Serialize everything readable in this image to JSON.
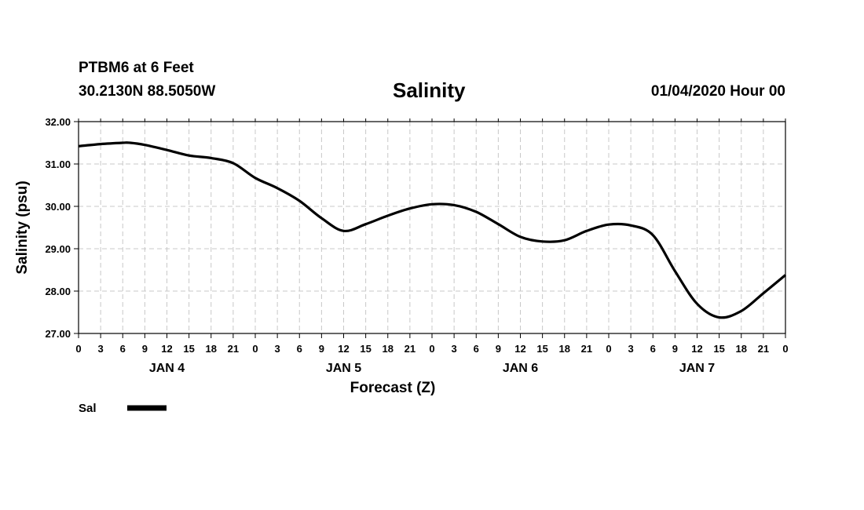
{
  "header": {
    "station": "PTBM6 at 6 Feet",
    "coords": "30.2130N 88.5050W",
    "datetime": "01/04/2020 Hour 00"
  },
  "colors": {
    "line": "#000000",
    "grid": "#c8c8c8",
    "frame": "#000000"
  },
  "chart_data": {
    "type": "line",
    "title": "Salinity",
    "xlabel": "Forecast (Z)",
    "ylabel": "Salinity (psu)",
    "xlim": [
      0,
      96
    ],
    "ylim": [
      27.0,
      32.0
    ],
    "grid": true,
    "y_ticks": [
      27.0,
      28.0,
      29.0,
      30.0,
      31.0,
      32.0
    ],
    "y_tick_labels": [
      "27.00",
      "28.00",
      "29.00",
      "30.00",
      "31.00",
      "32.00"
    ],
    "x_ticks": [
      0,
      3,
      6,
      9,
      12,
      15,
      18,
      21,
      24,
      27,
      30,
      33,
      36,
      39,
      42,
      45,
      48,
      51,
      54,
      57,
      60,
      63,
      66,
      69,
      72,
      75,
      78,
      81,
      84,
      87,
      90,
      93,
      96
    ],
    "x_tick_labels": [
      "0",
      "3",
      "6",
      "9",
      "12",
      "15",
      "18",
      "21",
      "0",
      "3",
      "6",
      "9",
      "12",
      "15",
      "18",
      "21",
      "0",
      "3",
      "6",
      "9",
      "12",
      "15",
      "18",
      "21",
      "0",
      "3",
      "6",
      "9",
      "12",
      "15",
      "18",
      "21",
      "0"
    ],
    "day_labels": [
      {
        "label": "JAN 4",
        "hour": 12
      },
      {
        "label": "JAN 5",
        "hour": 36
      },
      {
        "label": "JAN 6",
        "hour": 60
      },
      {
        "label": "JAN 7",
        "hour": 84
      }
    ],
    "legend_position": "bottom-left",
    "series": [
      {
        "name": "Sal",
        "x": [
          0,
          3,
          6,
          7,
          9,
          12,
          15,
          18,
          21,
          24,
          27,
          30,
          33,
          36,
          39,
          42,
          45,
          48,
          51,
          54,
          57,
          60,
          63,
          66,
          69,
          72,
          75,
          78,
          81,
          84,
          87,
          90,
          93,
          96
        ],
        "values": [
          31.42,
          31.47,
          31.5,
          31.5,
          31.45,
          31.33,
          31.2,
          31.14,
          31.02,
          30.67,
          30.43,
          30.13,
          29.72,
          29.42,
          29.58,
          29.78,
          29.95,
          30.05,
          30.03,
          29.87,
          29.58,
          29.28,
          29.17,
          29.2,
          29.42,
          29.57,
          29.55,
          29.32,
          28.47,
          27.7,
          27.38,
          27.53,
          27.95,
          28.38
        ]
      }
    ]
  }
}
